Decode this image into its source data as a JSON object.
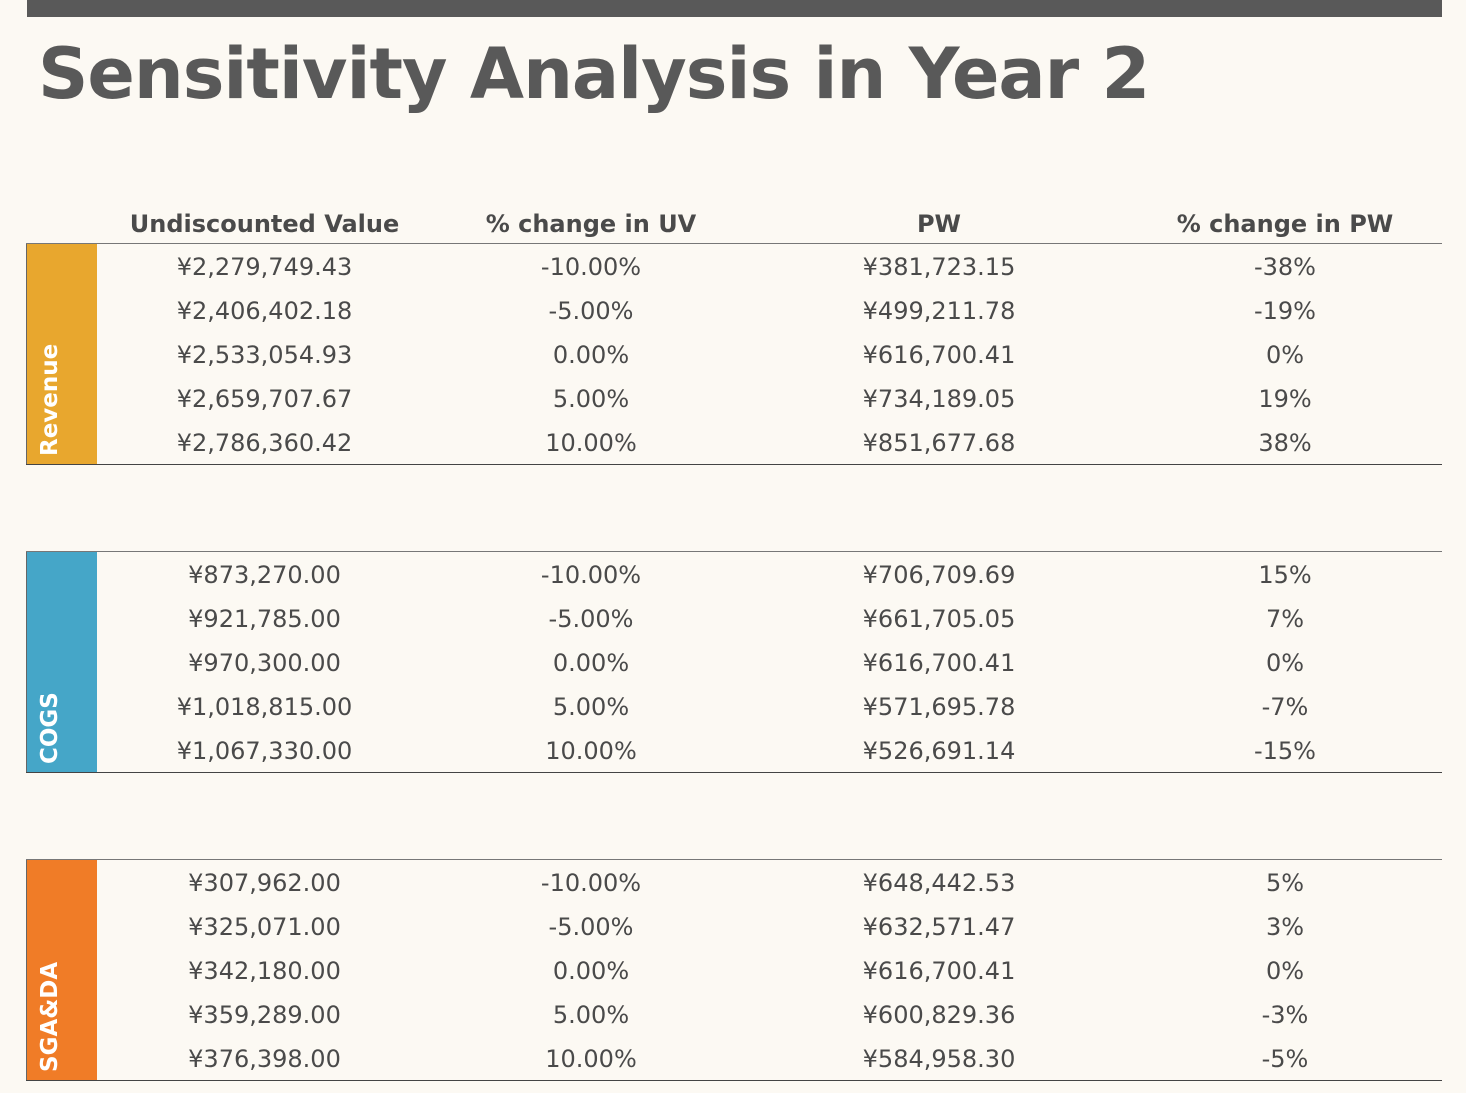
{
  "title": "Sensitivity Analysis in Year 2",
  "columns": {
    "uv": "Undiscounted Value",
    "pct_uv": "% change in UV",
    "pw": "PW",
    "pct_pw": "% change in PW"
  },
  "colors": {
    "revenue": "#e8a72e",
    "cogs": "#45a6c8",
    "sgada": "#f07c27"
  },
  "sections": [
    {
      "label": "Revenue",
      "rows": [
        {
          "uv": "¥2,279,749.43",
          "pct_uv": "-10.00%",
          "pw": "¥381,723.15",
          "pct_pw": "-38%"
        },
        {
          "uv": "¥2,406,402.18",
          "pct_uv": "-5.00%",
          "pw": "¥499,211.78",
          "pct_pw": "-19%"
        },
        {
          "uv": "¥2,533,054.93",
          "pct_uv": "0.00%",
          "pw": "¥616,700.41",
          "pct_pw": "0%"
        },
        {
          "uv": "¥2,659,707.67",
          "pct_uv": "5.00%",
          "pw": "¥734,189.05",
          "pct_pw": "19%"
        },
        {
          "uv": "¥2,786,360.42",
          "pct_uv": "10.00%",
          "pw": "¥851,677.68",
          "pct_pw": "38%"
        }
      ]
    },
    {
      "label": "COGS",
      "rows": [
        {
          "uv": "¥873,270.00",
          "pct_uv": "-10.00%",
          "pw": "¥706,709.69",
          "pct_pw": "15%"
        },
        {
          "uv": "¥921,785.00",
          "pct_uv": "-5.00%",
          "pw": "¥661,705.05",
          "pct_pw": "7%"
        },
        {
          "uv": "¥970,300.00",
          "pct_uv": "0.00%",
          "pw": "¥616,700.41",
          "pct_pw": "0%"
        },
        {
          "uv": "¥1,018,815.00",
          "pct_uv": "5.00%",
          "pw": "¥571,695.78",
          "pct_pw": "-7%"
        },
        {
          "uv": "¥1,067,330.00",
          "pct_uv": "10.00%",
          "pw": "¥526,691.14",
          "pct_pw": "-15%"
        }
      ]
    },
    {
      "label": "SGA&DA",
      "rows": [
        {
          "uv": "¥307,962.00",
          "pct_uv": "-10.00%",
          "pw": "¥648,442.53",
          "pct_pw": "5%"
        },
        {
          "uv": "¥325,071.00",
          "pct_uv": "-5.00%",
          "pw": "¥632,571.47",
          "pct_pw": "3%"
        },
        {
          "uv": "¥342,180.00",
          "pct_uv": "0.00%",
          "pw": "¥616,700.41",
          "pct_pw": "0%"
        },
        {
          "uv": "¥359,289.00",
          "pct_uv": "5.00%",
          "pw": "¥600,829.36",
          "pct_pw": "-3%"
        },
        {
          "uv": "¥376,398.00",
          "pct_uv": "10.00%",
          "pw": "¥584,958.30",
          "pct_pw": "-5%"
        }
      ]
    }
  ]
}
